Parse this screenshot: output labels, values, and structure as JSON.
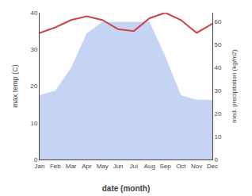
{
  "chart_data": {
    "type": "line",
    "xlabel": "date (month)",
    "ylabel": "max temp (C)",
    "y2label": "med. precipitation (kg/m2)",
    "categories": [
      "Jan",
      "Feb",
      "Mar",
      "Apr",
      "May",
      "Jun",
      "Jul",
      "Aug",
      "Sep",
      "Oct",
      "Nov",
      "Dec"
    ],
    "series": [
      {
        "type": "area",
        "axis": "y2",
        "color": "#c5d4f5",
        "values": [
          28,
          30,
          40,
          55,
          60,
          60,
          60,
          60,
          45,
          28,
          26,
          26
        ]
      },
      {
        "type": "line",
        "color": "#cc4444",
        "values": [
          34.5,
          36.0,
          38.0,
          39.0,
          38.0,
          35.5,
          35.0,
          38.5,
          40.0,
          38.0,
          34.5,
          37.0
        ]
      }
    ],
    "ylim": [
      0,
      40
    ],
    "yticks": [
      0,
      10,
      20,
      30,
      40
    ],
    "y2lim": [
      0,
      64
    ],
    "y2ticks": [
      0,
      10,
      20,
      30,
      40,
      50,
      60
    ],
    "grid": false
  }
}
